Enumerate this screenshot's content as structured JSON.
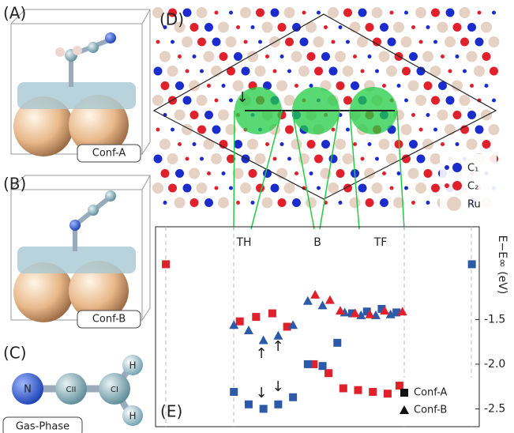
{
  "panels": {
    "a": "(A)",
    "b": "(B)",
    "c": "(C)",
    "d": "(D)",
    "e": "(E)"
  },
  "structures": {
    "conf_a": "Conf-A",
    "conf_b": "Conf-B",
    "gas": "Gas-Phase"
  },
  "molecule": {
    "n": "N",
    "c2": "CII",
    "c1": "CI",
    "h1": "H",
    "h2": "H"
  },
  "surface_legend": {
    "c1": "C₁",
    "c2": "C₂",
    "ru": "Ru"
  },
  "sites": {
    "th": "TH",
    "b": "B",
    "tf": "TF"
  },
  "chart_data": {
    "type": "scatter",
    "ylabel": "E−E∞ (eV)",
    "xlim": [
      -5.3,
      16.6
    ],
    "ylim": [
      -2.7,
      -0.46
    ],
    "yticks": [
      -1.5,
      {
        "value": -2,
        "label": "-2.0"
      },
      -2.5
    ],
    "annotations": [
      "↓",
      "↑",
      "↓",
      "↑",
      "↓"
    ],
    "series": [
      {
        "name": "Conf-A",
        "marker": "square",
        "x": [
          -4.6,
          0.4,
          1.5,
          2.6,
          3.6,
          5.4,
          6.4,
          7.4,
          8.4,
          9.4,
          10.4,
          11.2,
          0,
          1,
          2,
          3,
          4,
          5,
          6,
          7,
          8,
          9,
          10,
          11,
          16.1
        ],
        "values": [
          -0.88,
          -1.52,
          -1.47,
          -1.43,
          -1.58,
          -2.0,
          -2.1,
          -2.27,
          -2.29,
          -2.31,
          -2.33,
          -2.24,
          -2.31,
          -2.45,
          -2.5,
          -2.45,
          -2.37,
          -2.0,
          -2.02,
          -1.76,
          -1.43,
          -1.41,
          -1.38,
          -1.42,
          -0.88
        ],
        "colors": [
          "#e0202a",
          "#e0202a",
          "#e0202a",
          "#e0202a",
          "#e0202a",
          "#e0202a",
          "#e0202a",
          "#e0202a",
          "#e0202a",
          "#e0202a",
          "#e0202a",
          "#e0202a",
          "#2c5aa8",
          "#2c5aa8",
          "#2c5aa8",
          "#2c5aa8",
          "#2c5aa8",
          "#2c5aa8",
          "#2c5aa8",
          "#2c5aa8",
          "#2c5aa8",
          "#2c5aa8",
          "#2c5aa8",
          "#2c5aa8",
          "#2c5aa8"
        ]
      },
      {
        "name": "Conf-B",
        "marker": "triangle",
        "x": [
          0,
          1,
          2,
          3,
          4,
          5,
          6,
          7.5,
          8.6,
          9.6,
          10.6,
          5.5,
          6.5,
          7.2,
          8.2,
          9.2,
          10.2,
          11.4
        ],
        "values": [
          -1.56,
          -1.62,
          -1.73,
          -1.68,
          -1.56,
          -1.29,
          -1.34,
          -1.42,
          -1.45,
          -1.45,
          -1.44,
          -1.22,
          -1.28,
          -1.4,
          -1.43,
          -1.44,
          -1.4,
          -1.41
        ],
        "colors": [
          "#2c5aa8",
          "#2c5aa8",
          "#2c5aa8",
          "#2c5aa8",
          "#2c5aa8",
          "#2c5aa8",
          "#2c5aa8",
          "#2c5aa8",
          "#2c5aa8",
          "#2c5aa8",
          "#2c5aa8",
          "#e0202a",
          "#e0202a",
          "#e0202a",
          "#e0202a",
          "#e0202a",
          "#e0202a",
          "#e0202a"
        ]
      }
    ]
  }
}
